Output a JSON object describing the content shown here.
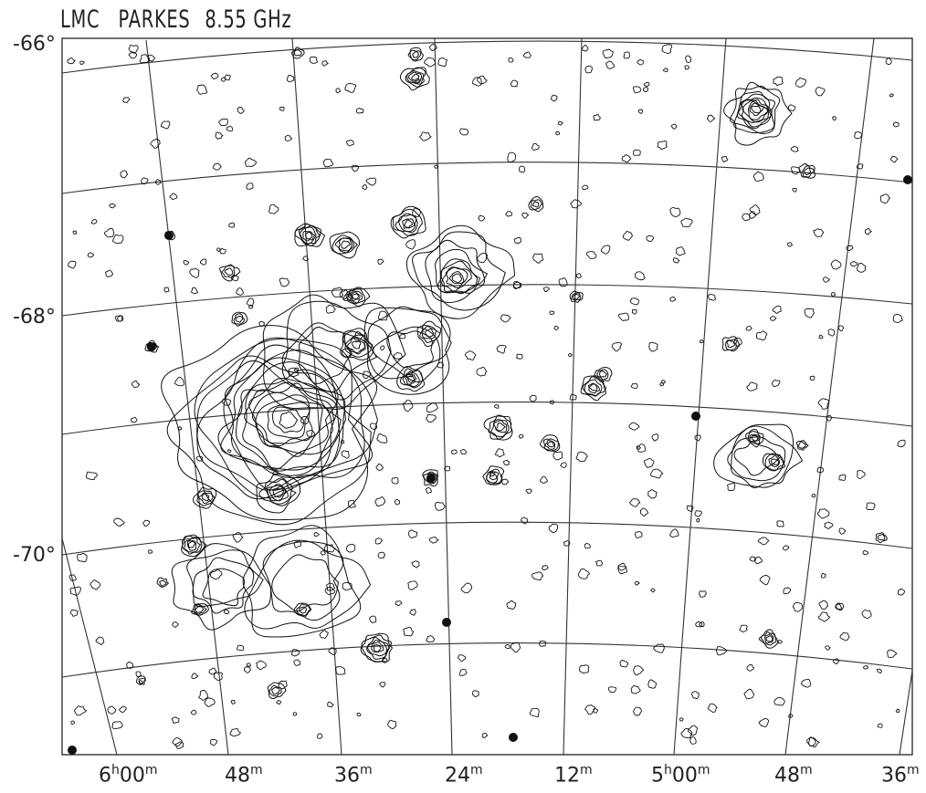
{
  "title": {
    "field": "LMC",
    "telescope": "PARKES",
    "frequency": "8.55 GHz"
  },
  "declination_labels": [
    "-66°",
    "-68°",
    "-70°"
  ],
  "right_ascension_labels": [
    {
      "h": "6",
      "hs": "h",
      "m": "00",
      "ms": "m"
    },
    {
      "h": "",
      "hs": "",
      "m": "48",
      "ms": "m"
    },
    {
      "h": "",
      "hs": "",
      "m": "36",
      "ms": "m"
    },
    {
      "h": "",
      "hs": "",
      "m": "24",
      "ms": "m"
    },
    {
      "h": "",
      "hs": "",
      "m": "12",
      "ms": "m"
    },
    {
      "h": "5",
      "hs": "h",
      "m": "00",
      "ms": "m"
    },
    {
      "h": "",
      "hs": "",
      "m": "48",
      "ms": "m"
    },
    {
      "h": "",
      "hs": "",
      "m": "36",
      "ms": "m"
    }
  ],
  "colors": {
    "ink": "#222222",
    "background": "#ffffff"
  }
}
